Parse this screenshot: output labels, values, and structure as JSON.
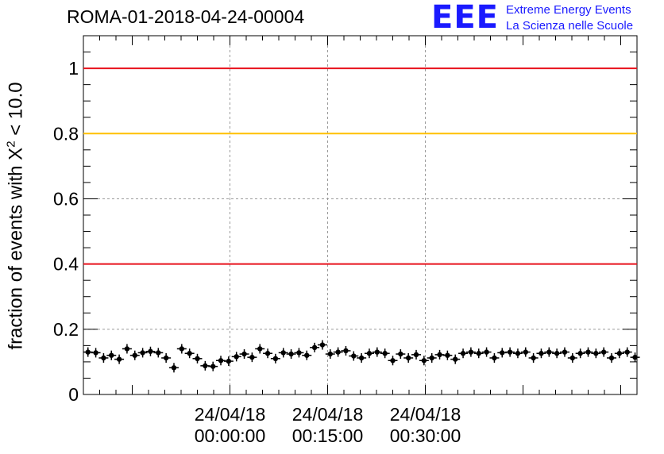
{
  "header": {
    "run_id": "ROMA-01-2018-04-24-00004",
    "logo_text": "EEE",
    "logo_line1": "Extreme Energy Events",
    "logo_line2": "La Scienza nelle Scuole"
  },
  "colors": {
    "logo": "#1a1aff",
    "red_threshold": "#e8121c",
    "yellow_threshold": "#ffc000",
    "points": "#000000",
    "grid": "#9a9a9a"
  },
  "chart_data": {
    "type": "scatter",
    "title": "ROMA-01-2018-04-24-00004",
    "ylabel_prefix": "fraction of events with ",
    "ylabel_chi": "X",
    "ylabel_exp": "2",
    "ylabel_suffix": " < 10.0",
    "xlabel": "",
    "ylim": [
      0,
      1.1
    ],
    "xlim_minutes": [
      -22.5,
      62.5
    ],
    "x_unit": "minutes relative to 24/04/18 00:00:00",
    "grid": true,
    "y_ticks": [
      {
        "value": 0,
        "label": "0"
      },
      {
        "value": 0.2,
        "label": "0.2"
      },
      {
        "value": 0.4,
        "label": "0.4"
      },
      {
        "value": 0.6,
        "label": "0.6"
      },
      {
        "value": 0.8,
        "label": "0.8"
      },
      {
        "value": 1,
        "label": "1"
      }
    ],
    "x_ticks": [
      {
        "minutes": 0,
        "date": "24/04/18",
        "time": "00:00:00"
      },
      {
        "minutes": 15,
        "date": "24/04/18",
        "time": "00:15:00"
      },
      {
        "minutes": 30,
        "date": "24/04/18",
        "time": "00:30:00"
      }
    ],
    "threshold_lines": [
      {
        "value": 1.0,
        "color": "red"
      },
      {
        "value": 0.8,
        "color": "yellow"
      },
      {
        "value": 0.4,
        "color": "red"
      }
    ],
    "series": [
      {
        "x_minutes": [
          -21.8,
          -20.6,
          -19.4,
          -18.2,
          -17.0,
          -15.8,
          -14.6,
          -13.4,
          -12.2,
          -11.0,
          -9.8,
          -8.6,
          -7.4,
          -6.2,
          -5.0,
          -3.8,
          -2.6,
          -1.4,
          -0.2,
          1.0,
          2.2,
          3.4,
          4.6,
          5.8,
          7.0,
          8.2,
          9.4,
          10.6,
          11.8,
          13.0,
          14.2,
          15.4,
          16.6,
          17.8,
          19.0,
          20.2,
          21.4,
          22.6,
          23.8,
          25.0,
          26.2,
          27.4,
          28.6,
          29.8,
          31.0,
          32.2,
          33.4,
          34.6,
          35.8,
          37.0,
          38.2,
          39.4,
          40.6,
          41.8,
          43.0,
          44.2,
          45.4,
          46.6,
          47.8,
          49.0,
          50.2,
          51.4,
          52.6,
          53.8,
          55.0,
          56.2,
          57.4,
          58.6,
          59.8,
          61.0,
          62.2
        ],
        "values": [
          0.13,
          0.128,
          0.112,
          0.12,
          0.108,
          0.14,
          0.12,
          0.128,
          0.132,
          0.128,
          0.112,
          0.082,
          0.14,
          0.126,
          0.11,
          0.088,
          0.086,
          0.104,
          0.102,
          0.116,
          0.124,
          0.114,
          0.14,
          0.126,
          0.11,
          0.128,
          0.124,
          0.128,
          0.12,
          0.144,
          0.152,
          0.124,
          0.13,
          0.134,
          0.118,
          0.112,
          0.126,
          0.13,
          0.126,
          0.104,
          0.124,
          0.112,
          0.122,
          0.104,
          0.112,
          0.122,
          0.12,
          0.108,
          0.126,
          0.13,
          0.126,
          0.13,
          0.112,
          0.128,
          0.13,
          0.126,
          0.13,
          0.112,
          0.126,
          0.13,
          0.126,
          0.13,
          0.112,
          0.126,
          0.13,
          0.126,
          0.13,
          0.112,
          0.126,
          0.13,
          0.114
        ]
      }
    ]
  }
}
